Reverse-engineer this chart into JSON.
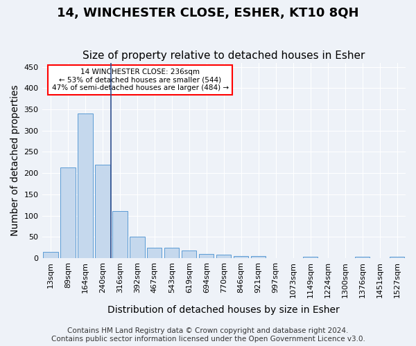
{
  "title": "14, WINCHESTER CLOSE, ESHER, KT10 8QH",
  "subtitle": "Size of property relative to detached houses in Esher",
  "xlabel": "Distribution of detached houses by size in Esher",
  "ylabel": "Number of detached properties",
  "categories": [
    "13sqm",
    "89sqm",
    "164sqm",
    "240sqm",
    "316sqm",
    "392sqm",
    "467sqm",
    "543sqm",
    "619sqm",
    "694sqm",
    "770sqm",
    "846sqm",
    "921sqm",
    "997sqm",
    "1073sqm",
    "1149sqm",
    "1224sqm",
    "1300sqm",
    "1376sqm",
    "1451sqm",
    "1527sqm"
  ],
  "values": [
    15,
    213,
    340,
    220,
    110,
    50,
    25,
    25,
    17,
    10,
    8,
    5,
    5,
    0,
    0,
    3,
    0,
    0,
    3,
    0,
    3
  ],
  "bar_color": "#c5d8ed",
  "bar_edge_color": "#5b9bd5",
  "vline_position": 3.5,
  "vline_color": "#2e4e8e",
  "annotation_text": "14 WINCHESTER CLOSE: 236sqm\n← 53% of detached houses are smaller (544)\n47% of semi-detached houses are larger (484) →",
  "annotation_box_color": "white",
  "annotation_box_edge_color": "red",
  "ylim": [
    0,
    460
  ],
  "yticks": [
    0,
    50,
    100,
    150,
    200,
    250,
    300,
    350,
    400,
    450
  ],
  "footer_line1": "Contains HM Land Registry data © Crown copyright and database right 2024.",
  "footer_line2": "Contains public sector information licensed under the Open Government Licence v3.0.",
  "bg_color": "#eef2f8",
  "plot_bg_color": "#eef2f8",
  "grid_color": "white",
  "title_fontsize": 13,
  "subtitle_fontsize": 11,
  "label_fontsize": 10,
  "tick_fontsize": 8,
  "footer_fontsize": 7.5
}
